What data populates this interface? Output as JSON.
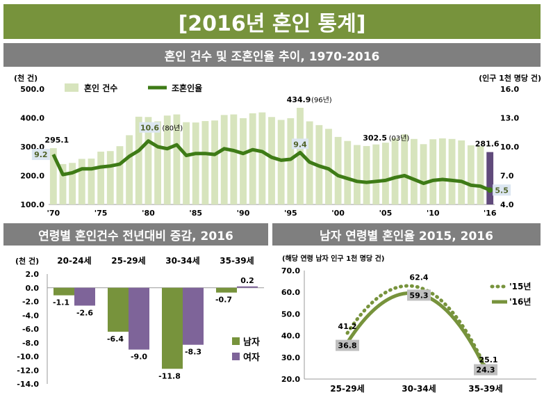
{
  "header": {
    "title": "[2016년 혼인 통계]"
  },
  "panels": {
    "top_title": "혼인 건수 및 조혼인율 추이, 1970-2016",
    "left_title": "연령별 혼인건수 전년대비 증감, 2016",
    "right_title": "남자 연령별 혼인율 2015, 2016"
  },
  "colors": {
    "banner": "#77933c",
    "subbar": "#7f7f7f",
    "bar_light": "#d7e4bd",
    "bar_highlight": "#604a7b",
    "line_green": "#3e7b16",
    "male": "#77933c",
    "female": "#7e6499"
  },
  "chart_data": [
    {
      "type": "bar",
      "title": "혼인 건수 및 조혼인율 추이, 1970-2016",
      "y_unit_left": "(천 건)",
      "y_unit_right": "(인구 1천 명당 건)",
      "ylim_left": [
        100,
        500
      ],
      "yticks_left": [
        "100.0",
        "200.0",
        "300.0",
        "400.0",
        "500.0"
      ],
      "ylim_right": [
        4.0,
        16.0
      ],
      "yticks_right": [
        "4.0",
        "7.0",
        "10.0",
        "13.0",
        "16.0"
      ],
      "x_tick_labels": [
        "'70",
        "'75",
        "'80",
        "'85",
        "'90",
        "'95",
        "'00",
        "'05",
        "'10",
        "'16"
      ],
      "x": [
        1970,
        1971,
        1972,
        1973,
        1974,
        1975,
        1976,
        1977,
        1978,
        1979,
        1980,
        1981,
        1982,
        1983,
        1984,
        1985,
        1986,
        1987,
        1988,
        1989,
        1990,
        1991,
        1992,
        1993,
        1994,
        1995,
        1996,
        1997,
        1998,
        1999,
        2000,
        2001,
        2002,
        2003,
        2004,
        2005,
        2006,
        2007,
        2008,
        2009,
        2010,
        2011,
        2012,
        2013,
        2014,
        2015,
        2016
      ],
      "series": [
        {
          "name": "혼인 건수",
          "type": "bar",
          "values": [
            295.1,
            240,
            244,
            258,
            259,
            283,
            285,
            302,
            340,
            404,
            403,
            388,
            408,
            412,
            385,
            384,
            389,
            391,
            410,
            412,
            399,
            416,
            419,
            403,
            393,
            399,
            434.9,
            388,
            375,
            362,
            334,
            320,
            306,
            302.5,
            308,
            314,
            330,
            343,
            327,
            309,
            326,
            329,
            327,
            322,
            305,
            302,
            281.6
          ]
        },
        {
          "name": "조혼인율",
          "type": "line",
          "values": [
            9.2,
            7.1,
            7.3,
            7.7,
            7.7,
            7.9,
            8.0,
            8.2,
            9.0,
            9.6,
            10.6,
            10.0,
            9.8,
            10.2,
            9.1,
            9.3,
            9.3,
            9.2,
            9.8,
            9.6,
            9.3,
            9.7,
            9.5,
            8.9,
            8.6,
            8.7,
            9.4,
            8.4,
            8.0,
            7.7,
            7.0,
            6.7,
            6.4,
            6.3,
            6.4,
            6.5,
            6.8,
            7.0,
            6.6,
            6.2,
            6.5,
            6.6,
            6.5,
            6.4,
            6.0,
            5.9,
            5.5
          ]
        }
      ],
      "annotations": [
        {
          "label": "295.1"
        },
        {
          "label": "9.2"
        },
        {
          "label": "10.6",
          "note": "(80년)"
        },
        {
          "label": "434.9",
          "note": "(96년)"
        },
        {
          "label": "9.4"
        },
        {
          "label": "302.5",
          "note": "(03년)"
        },
        {
          "label": "281.6"
        },
        {
          "label": "5.5"
        }
      ]
    },
    {
      "type": "bar",
      "title": "연령별 혼인건수 전년대비 증감, 2016",
      "y_unit": "(천 건)",
      "ylim": [
        -14,
        2
      ],
      "yticks": [
        "2.0",
        "0.0",
        "-2.0",
        "-4.0",
        "-6.0",
        "-8.0",
        "-10.0",
        "-12.0",
        "-14.0"
      ],
      "categories": [
        "20-24세",
        "25-29세",
        "30-34세",
        "35-39세"
      ],
      "series": [
        {
          "name": "남자",
          "values": [
            -1.1,
            -6.4,
            -11.8,
            -0.7
          ],
          "labels": [
            "-1.1",
            "-6.4",
            "-11.8",
            "-0.7"
          ]
        },
        {
          "name": "여자",
          "values": [
            -2.6,
            -9.0,
            -8.3,
            0.2
          ],
          "labels": [
            "-2.6",
            "-9.0",
            "-8.3",
            "0.2"
          ]
        }
      ]
    },
    {
      "type": "line",
      "title": "남자 연령별 혼인율 2015, 2016",
      "y_unit": "(해당 연령 남자 인구 1천 명당 건)",
      "ylim": [
        20,
        70
      ],
      "yticks": [
        "20.0",
        "30.0",
        "40.0",
        "50.0",
        "60.0",
        "70.0"
      ],
      "categories": [
        "25-29세",
        "30-34세",
        "35-39세"
      ],
      "series": [
        {
          "name": "'15년",
          "style": "dotted",
          "values": [
            41.2,
            62.4,
            25.1
          ],
          "labels": [
            "41.2",
            "62.4",
            "25.1"
          ]
        },
        {
          "name": "'16년",
          "style": "solid",
          "values": [
            36.8,
            59.3,
            24.3
          ],
          "labels": [
            "36.8",
            "59.3",
            "24.3"
          ]
        }
      ]
    }
  ]
}
